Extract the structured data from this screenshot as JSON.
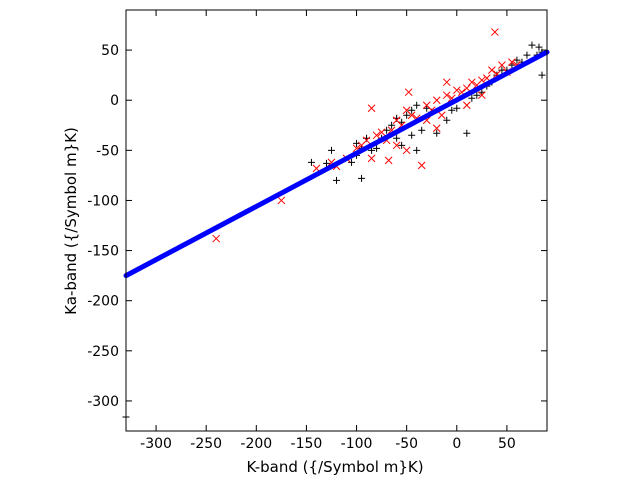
{
  "chart_data": {
    "type": "scatter",
    "title": "",
    "xlabel": "K-band ({/Symbol m}K)",
    "ylabel": "Ka-band ({/Symbol m}K)",
    "xlim": [
      -330,
      90
    ],
    "ylim": [
      -330,
      90
    ],
    "xticks": [
      -300,
      -250,
      -200,
      -150,
      -100,
      -50,
      0,
      50
    ],
    "yticks": [
      -300,
      -250,
      -200,
      -150,
      -100,
      -50,
      0,
      50
    ],
    "grid": false,
    "legend": "none",
    "series": [
      {
        "marker": "plus",
        "color": "#000000",
        "points": [
          [
            -330,
            -316
          ],
          [
            -145,
            -62
          ],
          [
            -130,
            -63
          ],
          [
            -120,
            -80
          ],
          [
            -105,
            -62
          ],
          [
            -100,
            -55
          ],
          [
            -100,
            -43
          ],
          [
            -95,
            -48
          ],
          [
            -90,
            -38
          ],
          [
            -85,
            -50
          ],
          [
            -80,
            -48
          ],
          [
            -75,
            -38
          ],
          [
            -70,
            -30
          ],
          [
            -65,
            -25
          ],
          [
            -60,
            -18
          ],
          [
            -55,
            -22
          ],
          [
            -50,
            -15
          ],
          [
            -45,
            -10
          ],
          [
            -40,
            -5
          ],
          [
            -30,
            -8
          ],
          [
            -25,
            -12
          ],
          [
            -20,
            -33
          ],
          [
            -10,
            -20
          ],
          [
            -5,
            -10
          ],
          [
            0,
            -8
          ],
          [
            10,
            -33
          ],
          [
            15,
            2
          ],
          [
            20,
            5
          ],
          [
            25,
            8
          ],
          [
            30,
            14
          ],
          [
            35,
            18
          ],
          [
            40,
            25
          ],
          [
            45,
            30
          ],
          [
            50,
            30
          ],
          [
            55,
            35
          ],
          [
            60,
            40
          ],
          [
            65,
            38
          ],
          [
            70,
            45
          ],
          [
            75,
            55
          ],
          [
            80,
            45
          ],
          [
            82,
            53
          ],
          [
            85,
            25
          ],
          [
            85,
            48
          ],
          [
            -95,
            -78
          ],
          [
            -125,
            -50
          ],
          [
            -60,
            -38
          ],
          [
            -55,
            -45
          ],
          [
            -45,
            -35
          ],
          [
            -40,
            -50
          ],
          [
            -35,
            -30
          ]
        ]
      },
      {
        "marker": "cross",
        "color": "#ff0000",
        "points": [
          [
            -240,
            -138
          ],
          [
            -175,
            -100
          ],
          [
            -140,
            -68
          ],
          [
            -125,
            -62
          ],
          [
            -110,
            -58
          ],
          [
            -100,
            -48
          ],
          [
            -95,
            -45
          ],
          [
            -90,
            -40
          ],
          [
            -85,
            -8
          ],
          [
            -80,
            -35
          ],
          [
            -75,
            -32
          ],
          [
            -70,
            -40
          ],
          [
            -68,
            -60
          ],
          [
            -65,
            -30
          ],
          [
            -60,
            -20
          ],
          [
            -55,
            -25
          ],
          [
            -50,
            -10
          ],
          [
            -48,
            8
          ],
          [
            -45,
            -15
          ],
          [
            -40,
            -18
          ],
          [
            -35,
            -65
          ],
          [
            -30,
            -5
          ],
          [
            -25,
            -10
          ],
          [
            -20,
            0
          ],
          [
            -15,
            -15
          ],
          [
            -10,
            5
          ],
          [
            -5,
            2
          ],
          [
            0,
            10
          ],
          [
            5,
            8
          ],
          [
            10,
            12
          ],
          [
            15,
            18
          ],
          [
            20,
            15
          ],
          [
            25,
            20
          ],
          [
            30,
            22
          ],
          [
            35,
            30
          ],
          [
            38,
            68
          ],
          [
            40,
            26
          ],
          [
            45,
            35
          ],
          [
            50,
            28
          ],
          [
            55,
            38
          ],
          [
            60,
            35
          ],
          [
            -30,
            -20
          ],
          [
            -20,
            -28
          ],
          [
            -60,
            -45
          ],
          [
            -50,
            -50
          ],
          [
            -85,
            -58
          ],
          [
            -120,
            -66
          ],
          [
            10,
            -5
          ],
          [
            -10,
            18
          ],
          [
            25,
            5
          ]
        ]
      }
    ],
    "fit_line": {
      "color": "#0000ff",
      "from": [
        -330,
        -175
      ],
      "to": [
        90,
        48
      ]
    }
  }
}
